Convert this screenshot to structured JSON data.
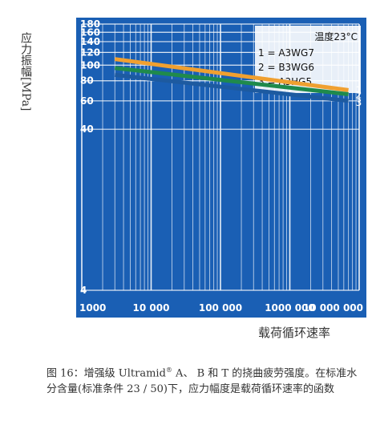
{
  "chart_data": {
    "type": "line",
    "xlabel": "载荷循环速率",
    "ylabel": "应力振幅[MPa]",
    "x_scale": "log",
    "y_scale": "log",
    "xlim": [
      1000,
      10000000
    ],
    "ylim": [
      4,
      180
    ],
    "x_ticks": [
      "1000",
      "10 000",
      "100 000",
      "1000 000",
      "10 000 000"
    ],
    "y_ticks": [
      "4",
      "40",
      "60",
      "80",
      "100",
      "120",
      "140",
      "160",
      "180"
    ],
    "grid": true,
    "legend_position": "top-right",
    "annotation": "温度23°C",
    "legend": [
      "1 = A3WG7",
      "2 = B3WG6",
      "3 = A3HG5"
    ],
    "series": [
      {
        "name": "1",
        "color": "#f0a030",
        "x": [
          3000,
          7000000
        ],
        "y": [
          109,
          70
        ]
      },
      {
        "name": "2",
        "color": "#1f8a4c",
        "x": [
          3000,
          7000000
        ],
        "y": [
          96,
          66
        ]
      },
      {
        "name": "3",
        "color": "#1d5aa0",
        "x": [
          3000,
          7000000
        ],
        "y": [
          87,
          60
        ]
      }
    ]
  },
  "caption": {
    "prefix": "图 16：增强级 Ultramid",
    "reg": "®",
    "rest": " A、 B 和 T 的挠曲疲劳强度。在标准水分含量(标准条件 23 / 50)下，应力幅度是载荷循环速率的函数"
  }
}
